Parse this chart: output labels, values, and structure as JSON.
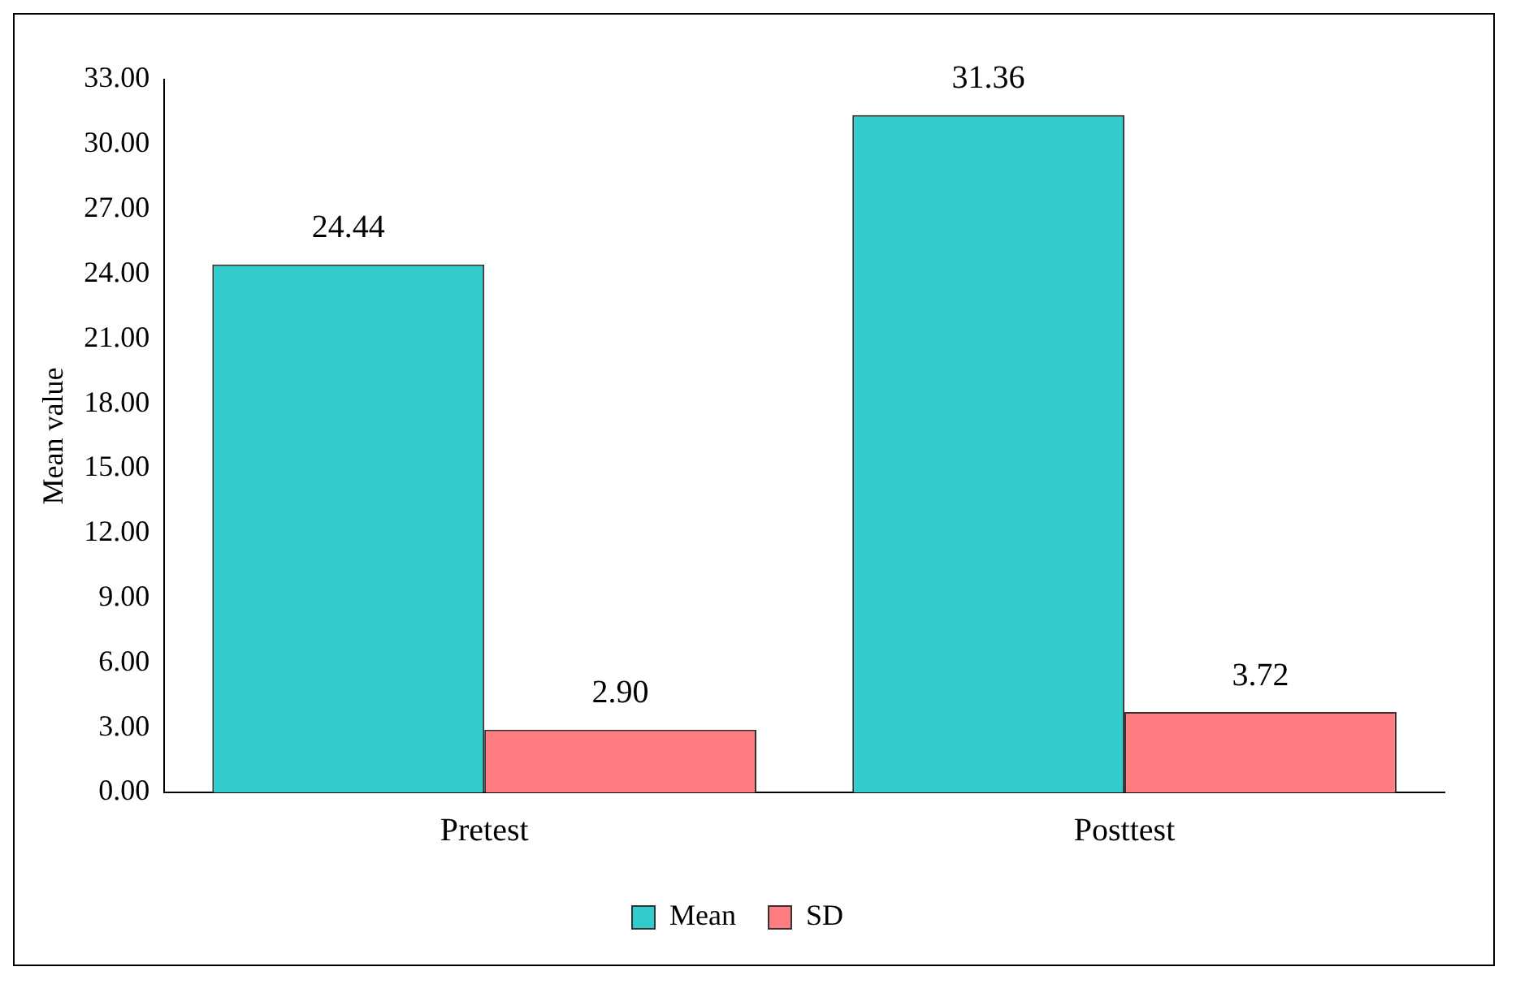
{
  "chart_data": {
    "type": "bar",
    "ylabel": "Mean value",
    "categories": [
      "Pretest",
      "Posttest"
    ],
    "series": [
      {
        "name": "Mean",
        "color": "#33cccc",
        "values": [
          24.44,
          31.36
        ],
        "value_labels": [
          "24.44",
          "31.36"
        ]
      },
      {
        "name": "SD",
        "color": "#ff7c80",
        "values": [
          2.9,
          3.72
        ],
        "value_labels": [
          "2.90",
          "3.72"
        ]
      }
    ],
    "ylim": [
      0,
      33
    ],
    "yticks": [
      {
        "value": 0,
        "label": "0.00"
      },
      {
        "value": 3,
        "label": "3.00"
      },
      {
        "value": 6,
        "label": "6.00"
      },
      {
        "value": 9,
        "label": "9.00"
      },
      {
        "value": 12,
        "label": "12.00"
      },
      {
        "value": 15,
        "label": "15.00"
      },
      {
        "value": 18,
        "label": "18.00"
      },
      {
        "value": 21,
        "label": "21.00"
      },
      {
        "value": 24,
        "label": "24.00"
      },
      {
        "value": 27,
        "label": "27.00"
      },
      {
        "value": 30,
        "label": "30.00"
      },
      {
        "value": 33,
        "label": "33.00"
      }
    ],
    "grid": false,
    "legend": "bottom"
  }
}
